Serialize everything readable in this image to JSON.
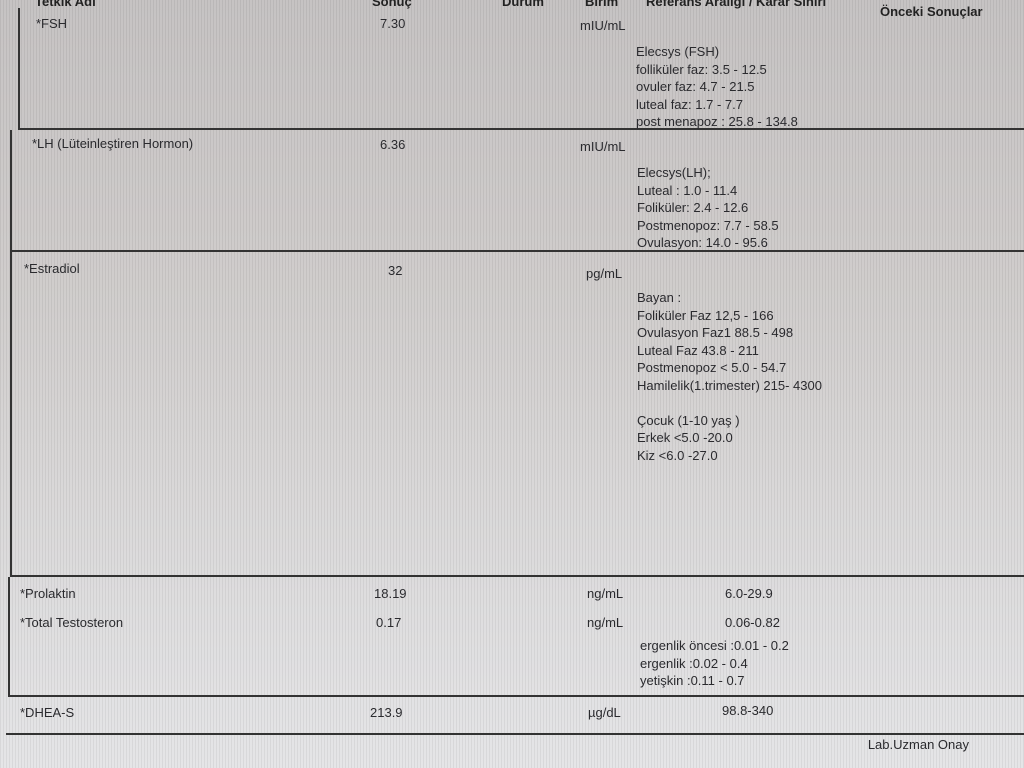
{
  "headers": {
    "name": "Tetkik Adı",
    "result": "Sonuç",
    "status": "Durum",
    "unit": "Birim",
    "reference": "Referans Aralığı / Karar Sınırı",
    "previous": "Önceki Sonuçlar"
  },
  "tests": [
    {
      "name": "*FSH",
      "result": "7.30",
      "unit": "mIU/mL",
      "reference": "Elecsys (FSH)\nfolliküler faz: 3.5 - 12.5\novuler faz: 4.7 - 21.5\nluteal faz: 1.7 - 7.7\npost menapoz : 25.8 - 134.8"
    },
    {
      "name": "*LH (Lüteinleştiren Hormon)",
      "result": "6.36",
      "unit": "mIU/mL",
      "reference": "Elecsys(LH);\nLuteal : 1.0 - 11.4\nFoliküler: 2.4 - 12.6\nPostmenopoz: 7.7 - 58.5\nOvulasyon: 14.0 - 95.6"
    },
    {
      "name": "*Estradiol",
      "result": "32",
      "unit": "pg/mL",
      "reference": "Bayan :\nFoliküler Faz 12,5 - 166\nOvulasyon Faz1 88.5 - 498\nLuteal Faz 43.8 - 211\nPostmenopoz < 5.0 - 54.7\nHamilelik(1.trimester) 215- 4300\n\nÇocuk (1-10 yaş )\nErkek <5.0 -20.0\nKiz <6.0 -27.0"
    },
    {
      "name": "*Prolaktin",
      "result": "18.19",
      "unit": "ng/mL",
      "reference": "6.0-29.9"
    },
    {
      "name": "*Total Testosteron",
      "result": "0.17",
      "unit": "ng/mL",
      "reference": "0.06-0.82",
      "reference_extra": "ergenlik öncesi :0.01 - 0.2\nergenlik :0.02 - 0.4\nyetişkin :0.11 - 0.7"
    },
    {
      "name": "*DHEA-S",
      "result": "213.9",
      "unit": "µg/dL",
      "reference": "98.8-340"
    }
  ],
  "footer": {
    "approval": "Lab.Uzman Onay"
  }
}
